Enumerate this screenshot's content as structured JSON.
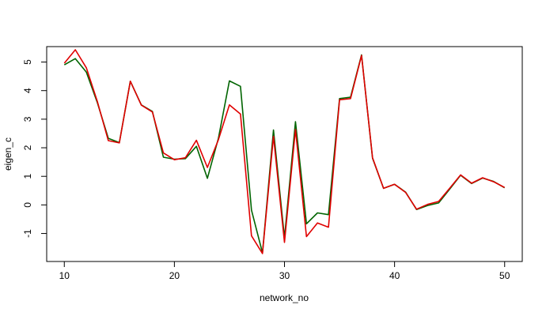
{
  "chart_data": {
    "type": "line",
    "title": "",
    "xlabel": "network_no",
    "ylabel": "eigen_c",
    "xlim": [
      8.4,
      51.6
    ],
    "ylim": [
      -1.98,
      5.54
    ],
    "xticks": [
      10,
      20,
      30,
      40,
      50
    ],
    "yticks": [
      -1,
      0,
      1,
      2,
      3,
      4,
      5
    ],
    "grid": false,
    "legend": "none",
    "x": [
      10,
      11,
      12,
      13,
      14,
      15,
      16,
      17,
      18,
      19,
      20,
      21,
      22,
      23,
      24,
      25,
      26,
      27,
      28,
      29,
      30,
      31,
      32,
      33,
      34,
      35,
      36,
      37,
      38,
      39,
      40,
      41,
      42,
      43,
      44,
      45,
      46,
      47,
      48,
      49,
      50
    ],
    "series": [
      {
        "color": "#006400",
        "values": [
          4.9,
          5.12,
          4.65,
          3.58,
          2.33,
          2.18,
          4.33,
          3.5,
          3.27,
          1.67,
          1.6,
          1.62,
          2.05,
          0.93,
          2.33,
          4.34,
          4.15,
          -0.18,
          -1.68,
          2.62,
          -1.15,
          2.91,
          -0.66,
          -0.28,
          -0.34,
          3.72,
          3.77,
          5.25,
          1.63,
          0.58,
          0.72,
          0.45,
          -0.16,
          -0.02,
          0.07,
          0.55,
          1.04,
          0.75,
          0.94,
          0.82,
          0.6
        ]
      },
      {
        "color": "#e00000",
        "values": [
          4.96,
          5.43,
          4.8,
          3.62,
          2.25,
          2.17,
          4.33,
          3.49,
          3.25,
          1.82,
          1.58,
          1.65,
          2.26,
          1.31,
          2.28,
          3.5,
          3.18,
          -1.08,
          -1.7,
          2.4,
          -1.31,
          2.64,
          -1.11,
          -0.63,
          -0.78,
          3.68,
          3.72,
          5.23,
          1.65,
          0.58,
          0.72,
          0.44,
          -0.15,
          0.02,
          0.12,
          0.58,
          1.05,
          0.76,
          0.95,
          0.81,
          0.61
        ]
      }
    ]
  }
}
